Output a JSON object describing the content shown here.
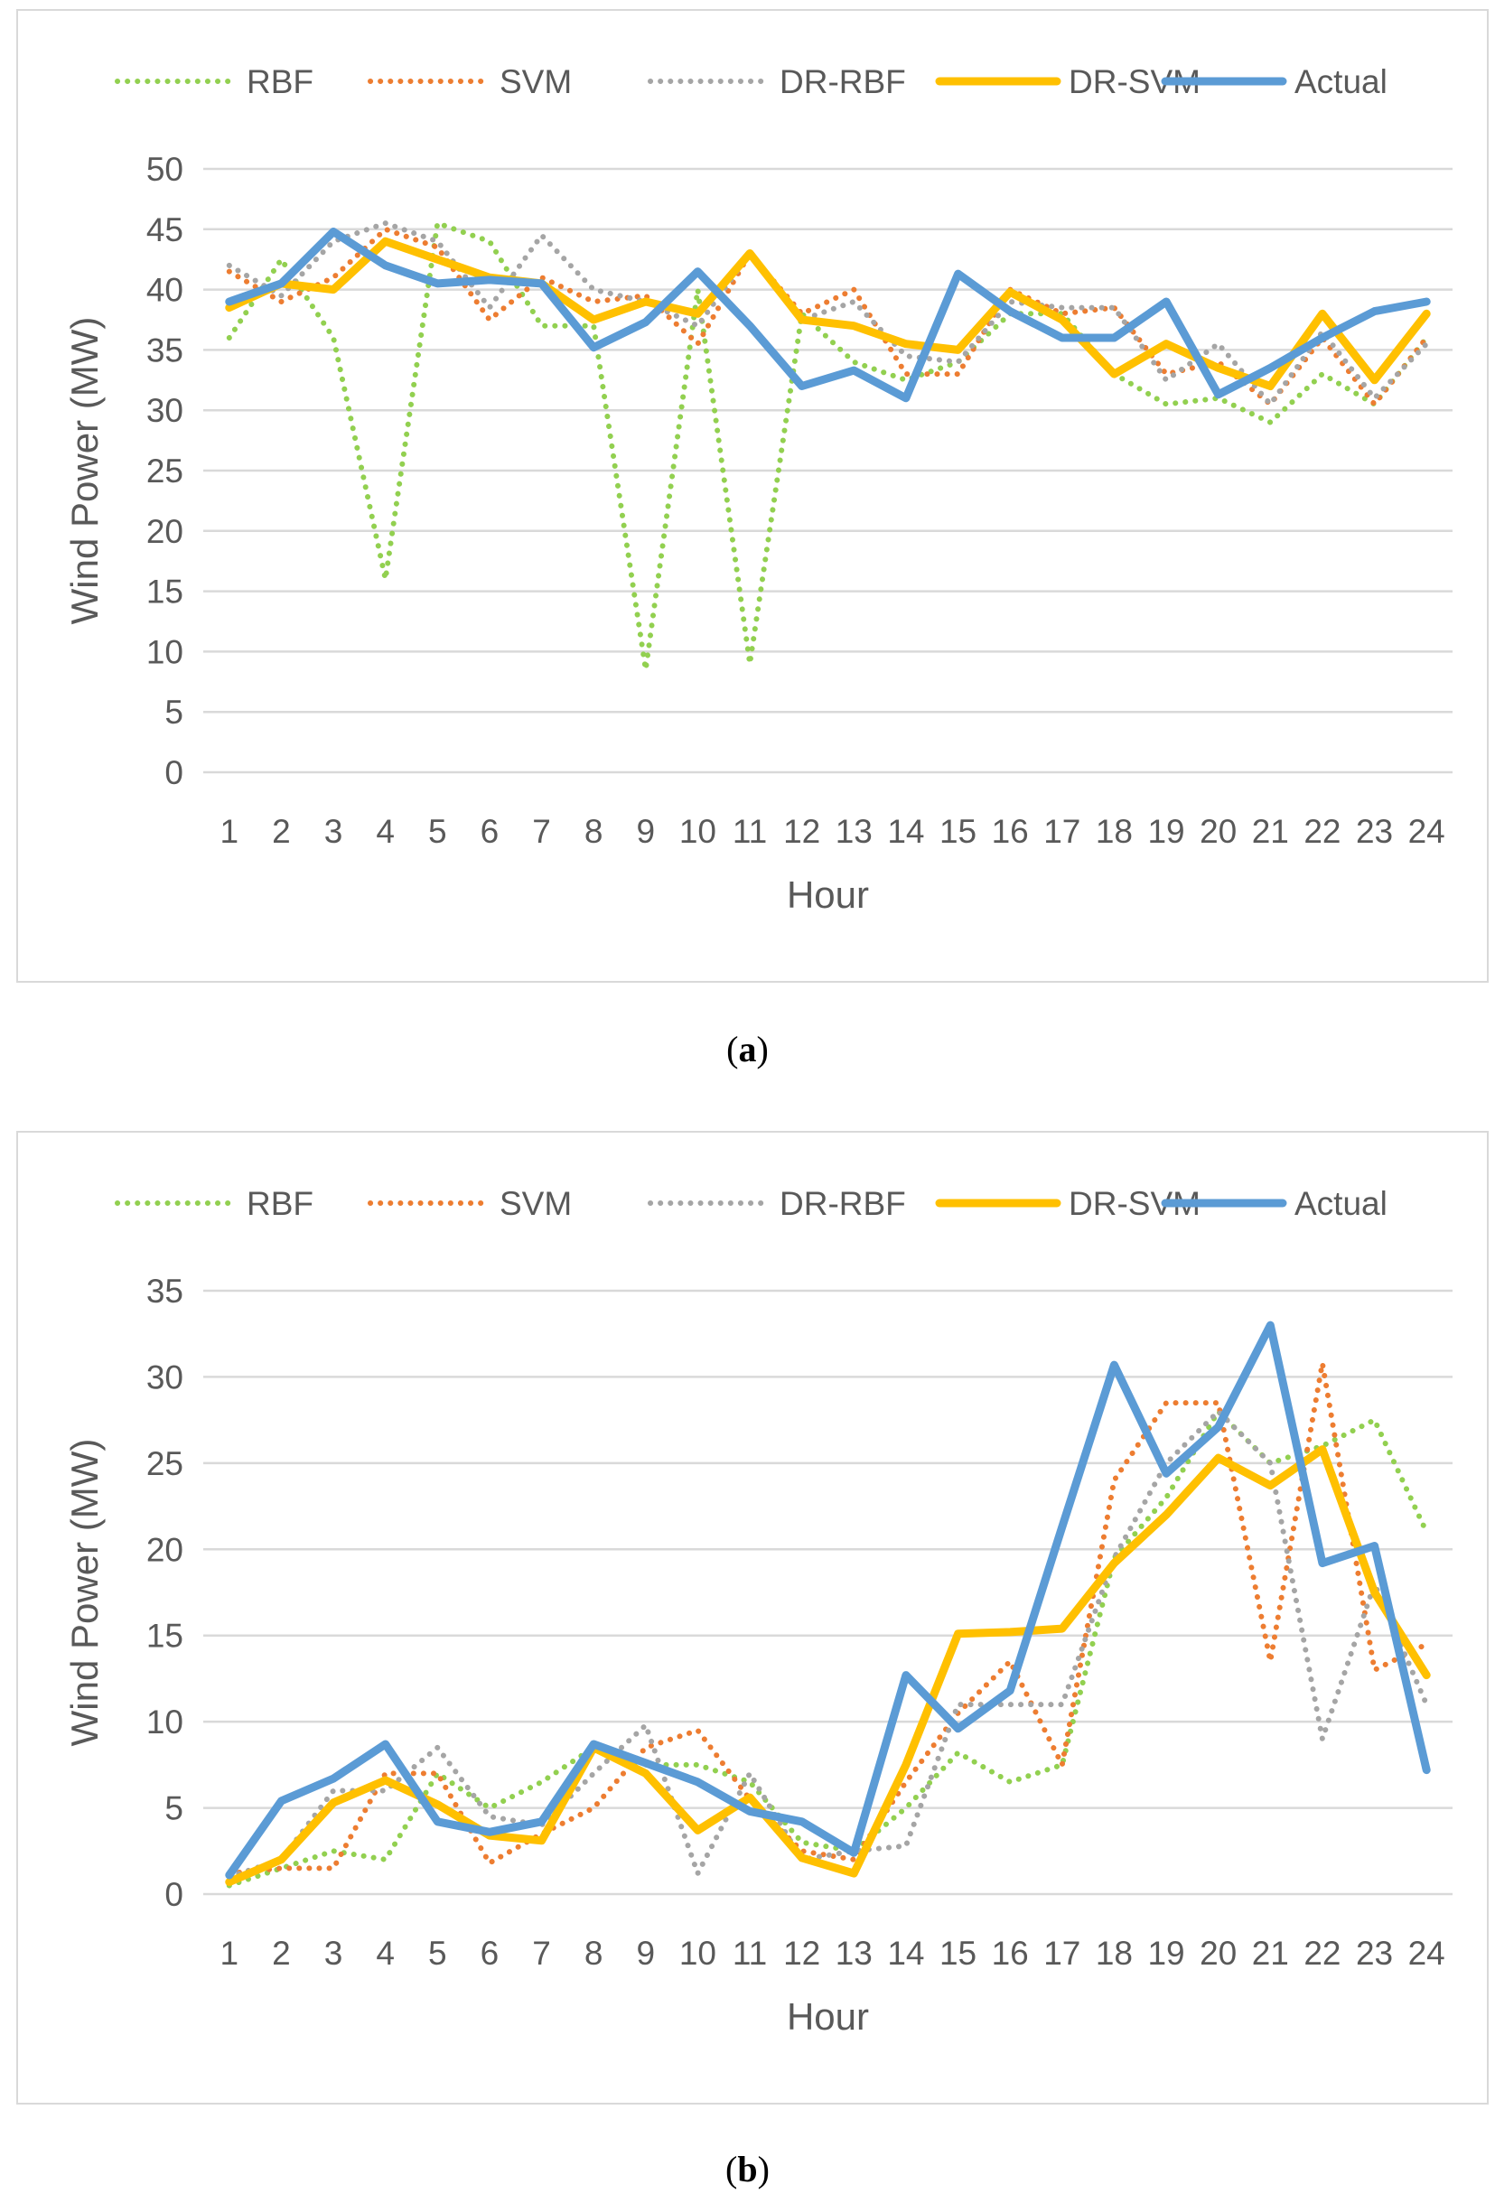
{
  "chart_data": [
    {
      "type": "line",
      "caption": "a",
      "title": "",
      "xlabel": "Hour",
      "ylabel": "Wind Power (MW)",
      "categories": [
        "1",
        "2",
        "3",
        "4",
        "5",
        "6",
        "7",
        "8",
        "9",
        "10",
        "11",
        "12",
        "13",
        "14",
        "15",
        "16",
        "17",
        "18",
        "19",
        "20",
        "21",
        "22",
        "23",
        "24"
      ],
      "ylim": [
        0,
        50
      ],
      "yticks": [
        "0",
        "5",
        "10",
        "15",
        "20",
        "25",
        "30",
        "35",
        "40",
        "45",
        "50"
      ],
      "grid": true,
      "legend_position": "top",
      "series": [
        {
          "name": "RBF",
          "color": "#92d050",
          "style": "dotted",
          "values": [
            36,
            42.5,
            36,
            16,
            45.5,
            44,
            37,
            37,
            8.5,
            40,
            9,
            38,
            34,
            32.5,
            34,
            38,
            38,
            33,
            30.5,
            31,
            29,
            33,
            30.5,
            36
          ]
        },
        {
          "name": "SVM",
          "color": "#ed7d31",
          "style": "dotted",
          "values": [
            41.5,
            39,
            41,
            45,
            43.5,
            37.5,
            41,
            39,
            39.5,
            35.5,
            43,
            38,
            40,
            33,
            33,
            40,
            38,
            38.5,
            33,
            34,
            30.5,
            36,
            30.5,
            36
          ]
        },
        {
          "name": "DR-RBF",
          "color": "#a5a5a5",
          "style": "dotted",
          "values": [
            42,
            39.5,
            44,
            45.5,
            44,
            38.5,
            44.5,
            40,
            39,
            37,
            43,
            37.5,
            39,
            34.5,
            34,
            39,
            38.5,
            38.5,
            32.5,
            35.5,
            30.5,
            36.5,
            31,
            35.5
          ]
        },
        {
          "name": "DR-SVM",
          "color": "#ffc000",
          "style": "solid",
          "values": [
            38.5,
            40.5,
            40,
            44,
            42.5,
            41,
            40.5,
            37.5,
            39,
            38,
            43,
            37.5,
            37,
            35.5,
            35,
            39.8,
            37.5,
            33,
            35.5,
            33.5,
            32,
            38,
            32.5,
            38
          ]
        },
        {
          "name": "Actual",
          "color": "#5b9bd5",
          "style": "solid",
          "values": [
            39,
            40.5,
            44.8,
            42,
            40.5,
            40.8,
            40.5,
            35.2,
            37.3,
            41.5,
            37,
            32,
            33.3,
            31,
            41.3,
            38.2,
            36,
            36,
            39,
            31.3,
            33.5,
            36,
            38.2,
            39
          ]
        }
      ]
    },
    {
      "type": "line",
      "caption": "b",
      "title": "",
      "xlabel": "Hour",
      "ylabel": "Wind Power (MW)",
      "categories": [
        "1",
        "2",
        "3",
        "4",
        "5",
        "6",
        "7",
        "8",
        "9",
        "10",
        "11",
        "12",
        "13",
        "14",
        "15",
        "16",
        "17",
        "18",
        "19",
        "20",
        "21",
        "22",
        "23",
        "24"
      ],
      "ylim": [
        0,
        35
      ],
      "yticks": [
        "0",
        "5",
        "10",
        "15",
        "20",
        "25",
        "30",
        "35"
      ],
      "grid": true,
      "legend_position": "top",
      "series": [
        {
          "name": "RBF",
          "color": "#92d050",
          "style": "dotted",
          "values": [
            0.5,
            1.5,
            2.5,
            2,
            7,
            5,
            6.5,
            8.5,
            7.5,
            7.5,
            6.5,
            3,
            2.5,
            5,
            8.2,
            6.5,
            7.5,
            19.5,
            23,
            28,
            25,
            26,
            27.5,
            21
          ]
        },
        {
          "name": "SVM",
          "color": "#ed7d31",
          "style": "dotted",
          "values": [
            1.2,
            1.5,
            1.5,
            7,
            7,
            1.8,
            3.5,
            5,
            8.5,
            9.5,
            5.5,
            2.5,
            2,
            6.5,
            10.5,
            13.5,
            7.5,
            24,
            28.5,
            28.5,
            13.5,
            30.8,
            13,
            14.5
          ]
        },
        {
          "name": "DR-RBF",
          "color": "#a5a5a5",
          "style": "dotted",
          "values": [
            1,
            2,
            6,
            6,
            8.5,
            4.5,
            4,
            7,
            9.8,
            1.2,
            7,
            2,
            2.5,
            2.8,
            11,
            11,
            11,
            19.5,
            25,
            28,
            25,
            9,
            18,
            11
          ]
        },
        {
          "name": "DR-SVM",
          "color": "#ffc000",
          "style": "solid",
          "values": [
            0.7,
            2,
            5.3,
            6.6,
            5.2,
            3.4,
            3.1,
            8.5,
            7,
            3.7,
            5.6,
            2.1,
            1.2,
            7.5,
            15.1,
            15.2,
            15.4,
            19.2,
            22,
            25.3,
            23.7,
            25.8,
            17.5,
            12.7
          ]
        },
        {
          "name": "Actual",
          "color": "#5b9bd5",
          "style": "solid",
          "values": [
            1.1,
            5.4,
            6.7,
            8.7,
            4.2,
            3.6,
            4.2,
            8.7,
            7.6,
            6.5,
            4.8,
            4.2,
            2.4,
            12.7,
            9.6,
            11.8,
            21.3,
            30.7,
            24.4,
            27.1,
            33,
            19.2,
            20.2,
            7.2
          ]
        }
      ]
    }
  ]
}
